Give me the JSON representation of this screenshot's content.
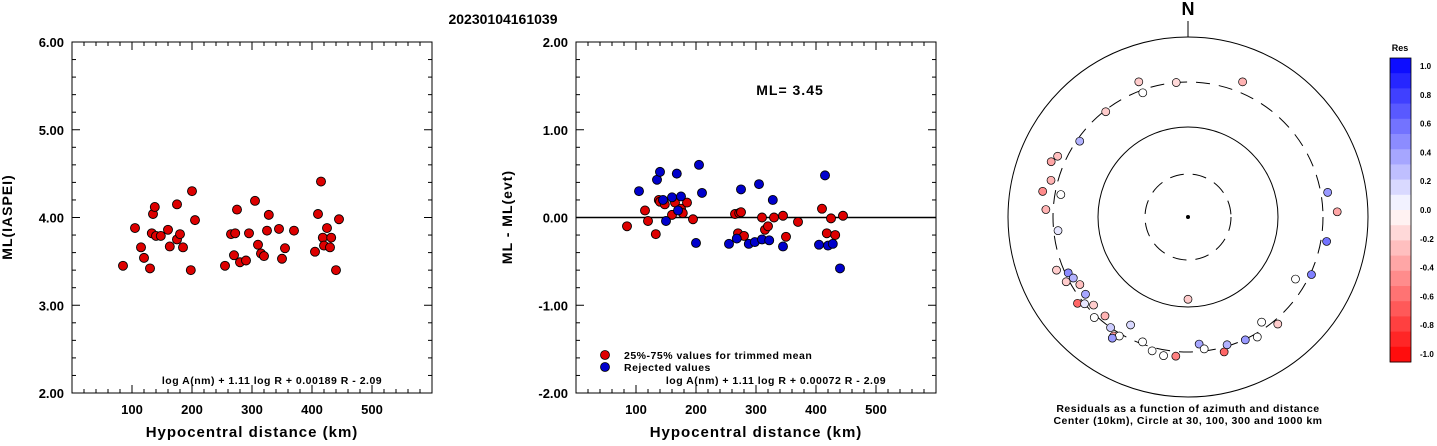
{
  "page_title": "20230104161039",
  "chart_data": [
    {
      "type": "scatter",
      "xlabel": "Hypocentral distance (km)",
      "ylabel": "ML(IASPEI)",
      "xlim": [
        0,
        600
      ],
      "ylim": [
        2.0,
        6.0
      ],
      "xticks": [
        "100",
        "200",
        "300",
        "400",
        "500"
      ],
      "yticks": [
        "2.00",
        "3.00",
        "4.00",
        "5.00",
        "6.00"
      ],
      "formula": "log A(nm) + 1.11 log R + 0.00189 R - 2.09",
      "series": [
        {
          "color": "#dd0000",
          "points": [
            [
              85,
              3.45
            ],
            [
              105,
              3.88
            ],
            [
              115,
              3.66
            ],
            [
              120,
              3.54
            ],
            [
              130,
              3.42
            ],
            [
              133,
              3.82
            ],
            [
              135,
              4.04
            ],
            [
              138,
              4.12
            ],
            [
              140,
              3.79
            ],
            [
              148,
              3.79
            ],
            [
              160,
              3.86
            ],
            [
              163,
              3.67
            ],
            [
              175,
              3.75
            ],
            [
              175,
              4.15
            ],
            [
              180,
              3.81
            ],
            [
              185,
              3.66
            ],
            [
              198,
              3.4
            ],
            [
              200,
              4.3
            ],
            [
              205,
              3.97
            ],
            [
              255,
              3.45
            ],
            [
              265,
              3.81
            ],
            [
              270,
              3.57
            ],
            [
              272,
              3.82
            ],
            [
              275,
              4.09
            ],
            [
              280,
              3.49
            ],
            [
              290,
              3.51
            ],
            [
              295,
              3.82
            ],
            [
              305,
              4.19
            ],
            [
              310,
              3.69
            ],
            [
              315,
              3.59
            ],
            [
              320,
              3.56
            ],
            [
              325,
              3.85
            ],
            [
              328,
              4.03
            ],
            [
              345,
              3.87
            ],
            [
              350,
              3.53
            ],
            [
              355,
              3.65
            ],
            [
              370,
              3.85
            ],
            [
              405,
              3.61
            ],
            [
              410,
              4.04
            ],
            [
              415,
              4.41
            ],
            [
              418,
              3.77
            ],
            [
              420,
              3.68
            ],
            [
              425,
              3.88
            ],
            [
              430,
              3.66
            ],
            [
              432,
              3.77
            ],
            [
              440,
              3.4
            ],
            [
              445,
              3.98
            ]
          ]
        }
      ]
    },
    {
      "type": "scatter",
      "xlabel": "Hypocentral distance (km)",
      "ylabel": "ML - ML(evt)",
      "xlim": [
        0,
        600
      ],
      "ylim": [
        -2.0,
        2.0
      ],
      "xticks": [
        "100",
        "200",
        "300",
        "400",
        "500"
      ],
      "yticks": [
        "-2.00",
        "-1.00",
        "0.00",
        "1.00",
        "2.00"
      ],
      "annotation": "ML= 3.45",
      "formula": "log A(nm) + 1.11 log R + 0.00072 R - 2.09",
      "legend_position": "bottom-left",
      "series": [
        {
          "name": "25%-75% values for trimmed mean",
          "color": "#dd0000",
          "points": [
            [
              85,
              -0.1
            ],
            [
              115,
              0.08
            ],
            [
              120,
              -0.04
            ],
            [
              133,
              -0.19
            ],
            [
              138,
              0.2
            ],
            [
              140,
              0.18
            ],
            [
              148,
              0.15
            ],
            [
              160,
              0.03
            ],
            [
              165,
              0.17
            ],
            [
              175,
              0.1
            ],
            [
              178,
              0.05
            ],
            [
              185,
              0.17
            ],
            [
              195,
              -0.02
            ],
            [
              265,
              0.04
            ],
            [
              270,
              -0.18
            ],
            [
              272,
              0.05
            ],
            [
              275,
              0.06
            ],
            [
              280,
              -0.21
            ],
            [
              310,
              0.0
            ],
            [
              315,
              -0.14
            ],
            [
              320,
              -0.1
            ],
            [
              330,
              0.0
            ],
            [
              345,
              0.02
            ],
            [
              350,
              -0.22
            ],
            [
              370,
              -0.05
            ],
            [
              410,
              0.1
            ],
            [
              418,
              -0.18
            ],
            [
              425,
              -0.01
            ],
            [
              432,
              -0.2
            ],
            [
              445,
              0.02
            ]
          ]
        },
        {
          "name": "Rejected values",
          "color": "#0000cc",
          "points": [
            [
              105,
              0.3
            ],
            [
              135,
              0.43
            ],
            [
              140,
              0.52
            ],
            [
              145,
              0.2
            ],
            [
              150,
              -0.04
            ],
            [
              160,
              0.23
            ],
            [
              168,
              0.5
            ],
            [
              170,
              0.08
            ],
            [
              175,
              0.24
            ],
            [
              200,
              -0.29
            ],
            [
              205,
              0.6
            ],
            [
              210,
              0.28
            ],
            [
              255,
              -0.3
            ],
            [
              268,
              -0.24
            ],
            [
              275,
              0.32
            ],
            [
              288,
              -0.3
            ],
            [
              298,
              -0.28
            ],
            [
              305,
              0.38
            ],
            [
              310,
              -0.25
            ],
            [
              322,
              -0.26
            ],
            [
              328,
              0.2
            ],
            [
              345,
              -0.33
            ],
            [
              405,
              -0.31
            ],
            [
              415,
              0.48
            ],
            [
              420,
              -0.32
            ],
            [
              428,
              -0.3
            ],
            [
              440,
              -0.58
            ]
          ]
        }
      ]
    },
    {
      "type": "polar-scatter",
      "north_label": "N",
      "caption_line1": "Residuals as a function of azimuth and distance",
      "caption_line2": "Center (10km), Circle at 30, 100, 300 and 1000 km",
      "colorbar_title": "Res",
      "colorbar_ticks": [
        "1.0",
        "0.8",
        "0.6",
        "0.4",
        "0.2",
        "0.0",
        "-0.2",
        "-0.4",
        "-0.6",
        "-0.8",
        "-1.0"
      ],
      "points": [
        {
          "az": -20,
          "dist": 380,
          "res": -0.2
        },
        {
          "az": 22,
          "dist": 400,
          "res": -0.3
        },
        {
          "az": -5,
          "dist": 300,
          "res": -0.15
        },
        {
          "az": -38,
          "dist": 290,
          "res": -0.2
        },
        {
          "az": -55,
          "dist": 280,
          "res": 0.3
        },
        {
          "az": -20,
          "dist": 280,
          "res": 0.0
        },
        {
          "az": -65,
          "dist": 380,
          "res": -0.25
        },
        {
          "az": -68,
          "dist": 420,
          "res": -0.35
        },
        {
          "az": -75,
          "dist": 360,
          "res": -0.3
        },
        {
          "az": -80,
          "dist": 420,
          "res": -0.45
        },
        {
          "az": -87,
          "dist": 365,
          "res": -0.3
        },
        {
          "az": -80,
          "dist": 260,
          "res": 0.0
        },
        {
          "az": -96,
          "dist": 270,
          "res": 0.1
        },
        {
          "az": -112,
          "dist": 360,
          "res": -0.2
        },
        {
          "az": -115,
          "dist": 280,
          "res": 0.45
        },
        {
          "az": -118,
          "dist": 265,
          "res": 0.3
        },
        {
          "az": -118,
          "dist": 325,
          "res": -0.2
        },
        {
          "az": -122,
          "dist": 250,
          "res": -0.25
        },
        {
          "az": -127,
          "dist": 255,
          "res": 0.35
        },
        {
          "az": -128,
          "dist": 345,
          "res": -0.6
        },
        {
          "az": -130,
          "dist": 300,
          "res": 0.1
        },
        {
          "az": -133,
          "dist": 260,
          "res": -0.2
        },
        {
          "az": -137,
          "dist": 320,
          "res": 0.0
        },
        {
          "az": -140,
          "dist": 260,
          "res": -0.3
        },
        {
          "az": -145,
          "dist": 300,
          "res": 0.2
        },
        {
          "az": -148,
          "dist": 345,
          "res": -0.4
        },
        {
          "az": -150,
          "dist": 320,
          "res": 0.0
        },
        {
          "az": -152,
          "dist": 220,
          "res": 0.15
        },
        {
          "az": -148,
          "dist": 370,
          "res": 0.4
        },
        {
          "az": -160,
          "dist": 285,
          "res": 0.0
        },
        {
          "az": -165,
          "dist": 330,
          "res": 0.0
        },
        {
          "az": -170,
          "dist": 350,
          "res": 0.0
        },
        {
          "az": -180,
          "dist": 82,
          "res": -0.2
        },
        {
          "az": -175,
          "dist": 340,
          "res": -0.5
        },
        {
          "az": 175,
          "dist": 250,
          "res": 0.35
        },
        {
          "az": 173,
          "dist": 285,
          "res": 0.0
        },
        {
          "az": 165,
          "dist": 340,
          "res": -0.6
        },
        {
          "az": 163,
          "dist": 290,
          "res": 0.3
        },
        {
          "az": 155,
          "dist": 305,
          "res": 0.4
        },
        {
          "az": 150,
          "dist": 330,
          "res": 0.0
        },
        {
          "az": 145,
          "dist": 255,
          "res": 0.0
        },
        {
          "az": 140,
          "dist": 340,
          "res": -0.2
        },
        {
          "az": 120,
          "dist": 230,
          "res": 0.0
        },
        {
          "az": 115,
          "dist": 310,
          "res": 0.5
        },
        {
          "az": 100,
          "dist": 350,
          "res": 0.55
        },
        {
          "az": 80,
          "dist": 360,
          "res": 0.4
        },
        {
          "az": 88,
          "dist": 440,
          "res": -0.35
        }
      ]
    }
  ]
}
